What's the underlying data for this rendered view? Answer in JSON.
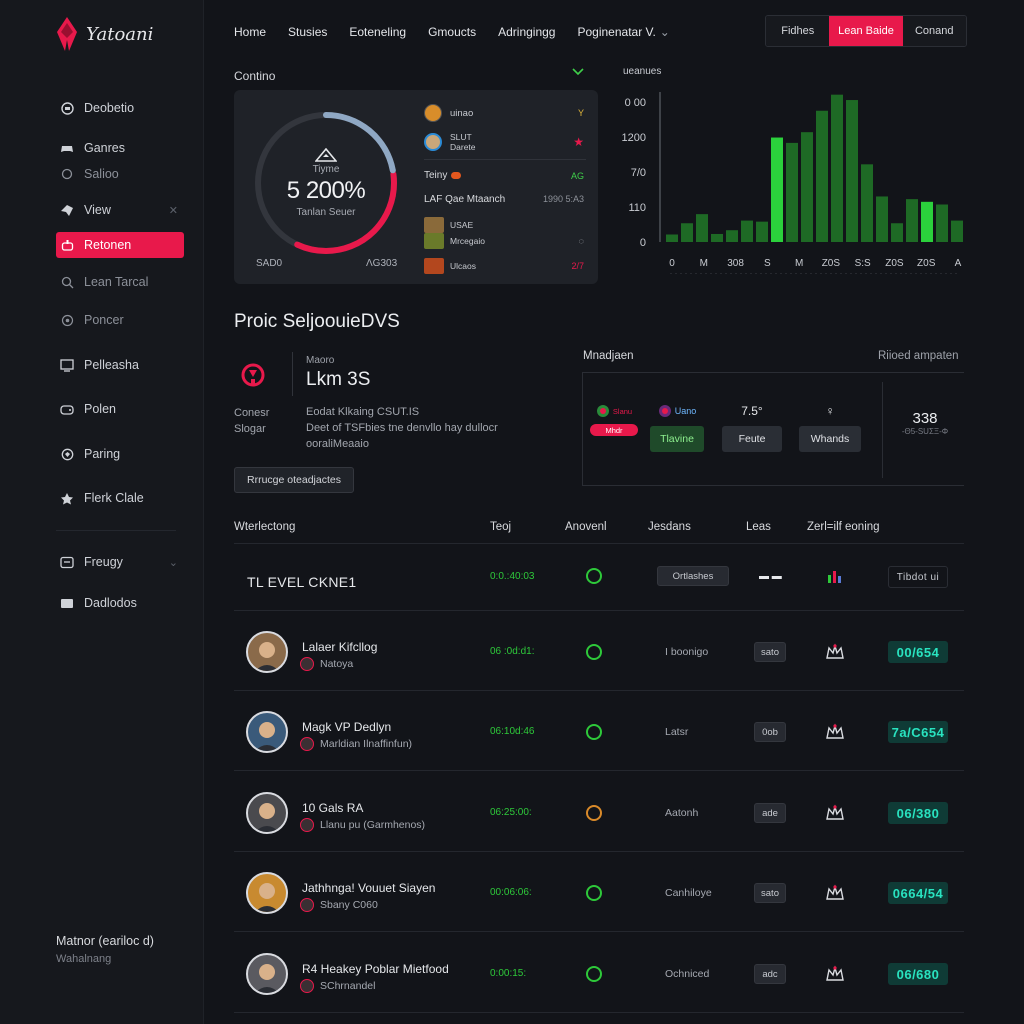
{
  "brand": {
    "name": "Yatoani",
    "accent": "#e8194b"
  },
  "sidebar": {
    "items": [
      {
        "label": "Deobetio",
        "icon": "dashboard-icon"
      },
      {
        "label": "Ganres",
        "icon": "games-icon"
      },
      {
        "label": "Salioo",
        "icon": "sale-icon"
      },
      {
        "label": "View",
        "icon": "view-icon",
        "trail": "✕"
      },
      {
        "label": "Retonen",
        "icon": "controller-icon",
        "active": true
      },
      {
        "label": "Lean Tarcal",
        "icon": "search-icon"
      },
      {
        "label": "Poncer",
        "icon": "power-icon"
      },
      {
        "label": "Pelleasha",
        "icon": "monitor-icon"
      },
      {
        "label": "Polen",
        "icon": "gamepad-icon"
      },
      {
        "label": "Paring",
        "icon": "bell-icon"
      },
      {
        "label": "Flerk Clale",
        "icon": "star-icon"
      },
      {
        "label": "Freugy",
        "icon": "inbox-icon",
        "trail": "⌄"
      },
      {
        "label": "Dadlodos",
        "icon": "folder-icon"
      }
    ],
    "footer_name": "Matnor (eariloc d)",
    "footer_sub": "Wahalnang"
  },
  "topnav": [
    "Home",
    "Stusies",
    "Eoteneling",
    "Gmoucts",
    "Adringingg",
    "Poginenatar   V."
  ],
  "topnav_chevron": "⌄",
  "top_buttons": [
    "Fidhes",
    "Lean Baide",
    "Conand"
  ],
  "overview": {
    "section_label": "Contino",
    "gauge": {
      "caption_top": "Tiyme",
      "value": "5 200%",
      "caption_bottom": "Tanlan Seuer",
      "fraction": 0.68,
      "foot_left": "SAD0",
      "foot_right": "ΛG303"
    },
    "mini_list": [
      {
        "label": "uinao",
        "value": "Y"
      },
      {
        "label": "SLUT\nDarete",
        "value": "★"
      }
    ],
    "mini_head": {
      "label": "Teiny",
      "value": "AG"
    },
    "mini_sub": {
      "label": "LAF Qae Mtaanch",
      "value": "1990 5:A3"
    },
    "mini_list2": [
      {
        "label": "USAE",
        "value": ""
      },
      {
        "label": "Mrcegaio",
        "value": "◌"
      },
      {
        "label": "Ulcaos",
        "value": "2/7"
      }
    ]
  },
  "chart_data": {
    "type": "bar",
    "title": "ueanues",
    "y_ticks": [
      "0",
      "110",
      "7/0",
      "1200",
      "0 00"
    ],
    "x_ticks": [
      "0",
      "M",
      "308",
      "S",
      "M",
      "Z0S",
      "S:S",
      "Z0S",
      "Z0S",
      "A"
    ],
    "series": [
      {
        "values": [
          14,
          35,
          52,
          15,
          22,
          40,
          38,
          75,
          185,
          205,
          245,
          275,
          265,
          145,
          85,
          35,
          80,
          25,
          70,
          40
        ],
        "color": "#1e6a25"
      },
      {
        "values": [
          0,
          0,
          0,
          0,
          0,
          0,
          0,
          195,
          0,
          0,
          0,
          0,
          0,
          0,
          0,
          0,
          0,
          75,
          0,
          0
        ],
        "color": "#2bd13c"
      }
    ],
    "ylim": [
      0,
      280
    ]
  },
  "profile": {
    "title": "Proic SeljoouieDVS",
    "meta": "Maoro",
    "name": "Lkm 3S",
    "keys": [
      "Conesr",
      "Slogar"
    ],
    "details": [
      "Eodat Klkaing CSUT.IS",
      "Deet of TSFbies tne denvllo hay dullocr",
      "ooraliMeaaio"
    ],
    "button": "Rrrucge oteadjactes"
  },
  "matches": {
    "head_left": "Mnadjaen",
    "head_right": "Riioed ampaten",
    "cols": [
      {
        "top": "Slanu",
        "tile": "Mhdr",
        "style": "chip"
      },
      {
        "top": "Uano",
        "tile": "Tlavine",
        "style": "green"
      },
      {
        "top": "7.5°",
        "tile": "Feute",
        "style": "plain"
      },
      {
        "top": "♀",
        "tile": "Whands",
        "style": "wide"
      }
    ],
    "right_value": "338",
    "right_sub": "-Θ5-SUΣΞ-Φ"
  },
  "table": {
    "headers": [
      "Wterlectong",
      "Teoj",
      "Anovenl",
      "Jesdans",
      "Leas",
      "Zerl=ilf eoning"
    ],
    "first_row": {
      "title": "TL EVEL CKNE1",
      "green": "0:0.:40:03",
      "pill": "Ortlashes",
      "dots": "▬ ▬",
      "score": "Tibdot ui"
    },
    "rows": [
      {
        "name": "Lalaer Kifcllog",
        "sub": "Natoya",
        "green": "06 :0d:d1:",
        "mid": "I boonigo",
        "pill": "sato",
        "score": "00/654",
        "avatar_bg": "#8a6a4a"
      },
      {
        "name": "Magk VP Dedlyn",
        "sub": "Marldian Ilnaffinfun)",
        "green": "06:10d:46",
        "mid": "Latsr",
        "pill": "0ob",
        "score": "7a/C654",
        "avatar_bg": "#3a5a7a"
      },
      {
        "name": "10 Gals RA",
        "sub": "Llanu pu (Garmhenos)",
        "green": "06:25:00:",
        "mid": "Aatonh",
        "pill": "ade",
        "score": "06/380",
        "avatar_bg": "#4a4a4e"
      },
      {
        "name": "Jathhnga! Vouuet Siayen",
        "sub": "Sbany C060",
        "green": "00:06:06:",
        "mid": "Canhiloye",
        "pill": "sato",
        "score": "0664/54",
        "avatar_bg": "#c88a30"
      },
      {
        "name": "R4 Heakey Poblar Mietfood",
        "sub": "SChrnandel",
        "green": "0:00:15:",
        "mid": "Ochniced",
        "pill": "adc",
        "score": "06/680",
        "avatar_bg": "#5a5a60"
      }
    ]
  }
}
